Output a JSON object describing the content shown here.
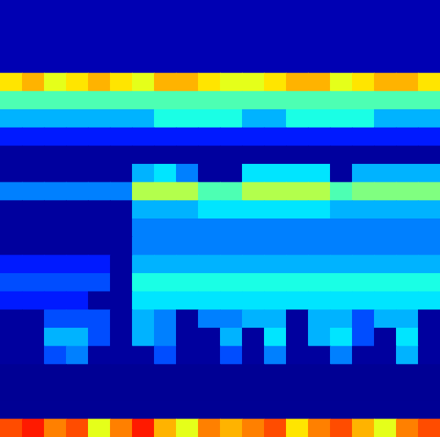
{
  "chart_data": {
    "type": "heatmap",
    "tick_labels": false,
    "xlim": [
      0,
      20
    ],
    "ylim": [
      0,
      24
    ],
    "color_range": [
      0,
      1
    ],
    "cells": [
      [
        0.05,
        0.05,
        0.05,
        0.05,
        0.05,
        0.05,
        0.05,
        0.05,
        0.05,
        0.05,
        0.05,
        0.05,
        0.05,
        0.05,
        0.05,
        0.05,
        0.05,
        0.05,
        0.05,
        0.05
      ],
      [
        0.05,
        0.05,
        0.05,
        0.05,
        0.05,
        0.05,
        0.05,
        0.05,
        0.05,
        0.05,
        0.05,
        0.05,
        0.05,
        0.05,
        0.05,
        0.05,
        0.05,
        0.05,
        0.05,
        0.05
      ],
      [
        0.05,
        0.05,
        0.05,
        0.05,
        0.05,
        0.05,
        0.05,
        0.05,
        0.05,
        0.05,
        0.05,
        0.05,
        0.05,
        0.05,
        0.05,
        0.05,
        0.05,
        0.05,
        0.05,
        0.05
      ],
      [
        0.05,
        0.05,
        0.05,
        0.05,
        0.05,
        0.05,
        0.05,
        0.05,
        0.05,
        0.05,
        0.05,
        0.05,
        0.05,
        0.05,
        0.05,
        0.05,
        0.05,
        0.05,
        0.05,
        0.05
      ],
      [
        0.65,
        0.7,
        0.6,
        0.65,
        0.7,
        0.65,
        0.6,
        0.7,
        0.7,
        0.65,
        0.6,
        0.6,
        0.65,
        0.7,
        0.7,
        0.6,
        0.65,
        0.7,
        0.7,
        0.65
      ],
      [
        0.45,
        0.45,
        0.45,
        0.45,
        0.45,
        0.45,
        0.45,
        0.45,
        0.45,
        0.45,
        0.45,
        0.45,
        0.45,
        0.45,
        0.45,
        0.45,
        0.45,
        0.45,
        0.45,
        0.45
      ],
      [
        0.3,
        0.3,
        0.3,
        0.3,
        0.3,
        0.3,
        0.3,
        0.4,
        0.4,
        0.4,
        0.4,
        0.3,
        0.3,
        0.4,
        0.4,
        0.4,
        0.4,
        0.3,
        0.3,
        0.3
      ],
      [
        0.15,
        0.15,
        0.15,
        0.15,
        0.15,
        0.15,
        0.15,
        0.15,
        0.15,
        0.15,
        0.15,
        0.15,
        0.15,
        0.15,
        0.15,
        0.15,
        0.15,
        0.15,
        0.15,
        0.15
      ],
      [
        0.03,
        0.03,
        0.03,
        0.03,
        0.03,
        0.03,
        0.03,
        0.03,
        0.03,
        0.03,
        0.03,
        0.03,
        0.03,
        0.03,
        0.03,
        0.03,
        0.03,
        0.03,
        0.03,
        0.03
      ],
      [
        0.03,
        0.03,
        0.03,
        0.03,
        0.03,
        0.03,
        0.3,
        0.35,
        0.25,
        0.03,
        0.03,
        0.35,
        0.35,
        0.35,
        0.35,
        0.03,
        0.3,
        0.3,
        0.3,
        0.3
      ],
      [
        0.25,
        0.25,
        0.25,
        0.25,
        0.25,
        0.25,
        0.55,
        0.55,
        0.55,
        0.45,
        0.45,
        0.55,
        0.55,
        0.55,
        0.55,
        0.45,
        0.5,
        0.5,
        0.5,
        0.5
      ],
      [
        0.03,
        0.03,
        0.03,
        0.03,
        0.03,
        0.03,
        0.3,
        0.3,
        0.3,
        0.35,
        0.35,
        0.35,
        0.35,
        0.35,
        0.35,
        0.3,
        0.3,
        0.3,
        0.3,
        0.3
      ],
      [
        0.03,
        0.03,
        0.03,
        0.03,
        0.03,
        0.03,
        0.25,
        0.25,
        0.25,
        0.25,
        0.25,
        0.25,
        0.25,
        0.25,
        0.25,
        0.25,
        0.25,
        0.25,
        0.25,
        0.25
      ],
      [
        0.03,
        0.03,
        0.03,
        0.03,
        0.03,
        0.03,
        0.25,
        0.25,
        0.25,
        0.25,
        0.25,
        0.25,
        0.25,
        0.25,
        0.25,
        0.25,
        0.25,
        0.25,
        0.25,
        0.25
      ],
      [
        0.15,
        0.15,
        0.15,
        0.15,
        0.15,
        0.03,
        0.3,
        0.3,
        0.3,
        0.3,
        0.3,
        0.3,
        0.3,
        0.3,
        0.3,
        0.3,
        0.3,
        0.3,
        0.3,
        0.3
      ],
      [
        0.2,
        0.2,
        0.2,
        0.2,
        0.2,
        0.03,
        0.4,
        0.4,
        0.4,
        0.4,
        0.4,
        0.4,
        0.4,
        0.4,
        0.4,
        0.4,
        0.4,
        0.4,
        0.4,
        0.4
      ],
      [
        0.15,
        0.15,
        0.15,
        0.15,
        0.03,
        0.03,
        0.35,
        0.35,
        0.35,
        0.35,
        0.35,
        0.35,
        0.35,
        0.35,
        0.35,
        0.35,
        0.35,
        0.35,
        0.35,
        0.35
      ],
      [
        0.03,
        0.03,
        0.2,
        0.2,
        0.2,
        0.03,
        0.3,
        0.25,
        0.03,
        0.25,
        0.25,
        0.3,
        0.3,
        0.03,
        0.3,
        0.3,
        0.2,
        0.3,
        0.3,
        0.03
      ],
      [
        0.03,
        0.03,
        0.3,
        0.3,
        0.2,
        0.03,
        0.3,
        0.25,
        0.03,
        0.03,
        0.3,
        0.03,
        0.35,
        0.03,
        0.3,
        0.35,
        0.2,
        0.03,
        0.35,
        0.03
      ],
      [
        0.03,
        0.03,
        0.2,
        0.25,
        0.03,
        0.03,
        0.03,
        0.2,
        0.03,
        0.03,
        0.2,
        0.03,
        0.25,
        0.03,
        0.03,
        0.25,
        0.03,
        0.03,
        0.3,
        0.03
      ],
      [
        0.02,
        0.02,
        0.02,
        0.02,
        0.02,
        0.02,
        0.02,
        0.02,
        0.02,
        0.02,
        0.02,
        0.02,
        0.02,
        0.02,
        0.02,
        0.02,
        0.02,
        0.02,
        0.02,
        0.02
      ],
      [
        0.02,
        0.02,
        0.02,
        0.02,
        0.02,
        0.02,
        0.02,
        0.02,
        0.02,
        0.02,
        0.02,
        0.02,
        0.02,
        0.02,
        0.02,
        0.02,
        0.02,
        0.02,
        0.02,
        0.02
      ],
      [
        0.02,
        0.02,
        0.02,
        0.02,
        0.02,
        0.02,
        0.02,
        0.02,
        0.02,
        0.02,
        0.02,
        0.02,
        0.02,
        0.02,
        0.02,
        0.02,
        0.02,
        0.02,
        0.02,
        0.02
      ],
      [
        0.8,
        0.85,
        0.75,
        0.8,
        0.6,
        0.75,
        0.85,
        0.7,
        0.6,
        0.75,
        0.7,
        0.75,
        0.8,
        0.65,
        0.75,
        0.8,
        0.7,
        0.6,
        0.75,
        0.8
      ]
    ]
  }
}
